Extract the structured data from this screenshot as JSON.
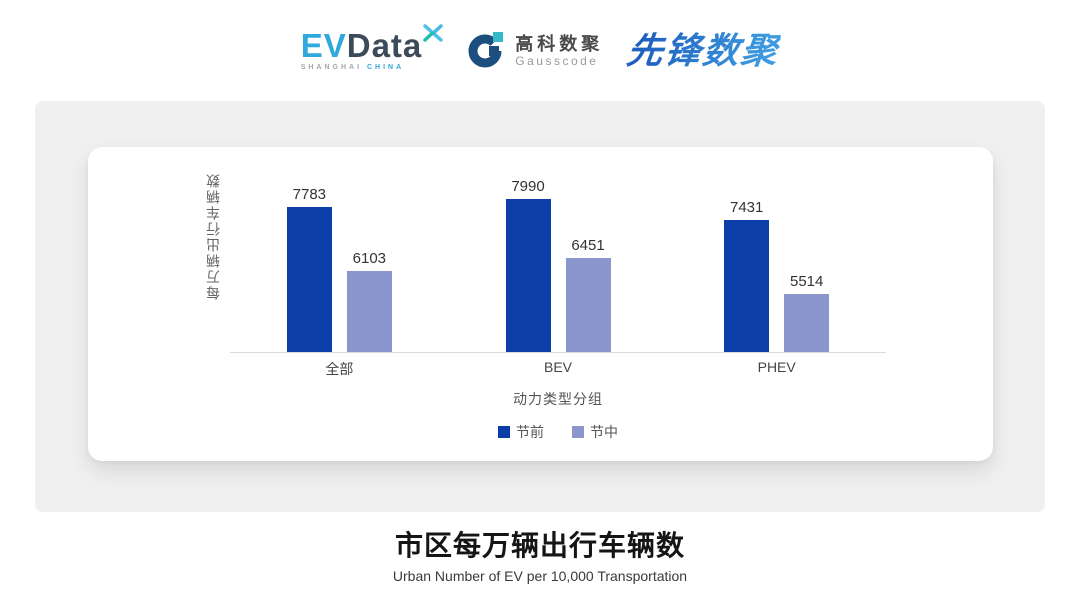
{
  "header": {
    "evdata": {
      "ev": "EV",
      "data": "Data",
      "sub_left": "SHANGHAI",
      "sub_right": "CHINA"
    },
    "gausscode": {
      "cn": "高科数聚",
      "en": "Gausscode"
    },
    "xianfeng": {
      "text": "先锋数聚"
    }
  },
  "chart_data": {
    "type": "bar",
    "categories": [
      "全部",
      "BEV",
      "PHEV"
    ],
    "series": [
      {
        "name": "节前",
        "color": "#0B3EA8",
        "values": [
          7783,
          7990,
          7431
        ]
      },
      {
        "name": "节中",
        "color": "#8B96CE",
        "values": [
          6103,
          6451,
          5514
        ]
      }
    ],
    "xlabel": "动力类型分组",
    "ylabel": "每万辆出行车辆数",
    "ylim": [
      4000,
      8400
    ],
    "value_labels": true,
    "grid": false,
    "legend_position": "bottom"
  },
  "footer": {
    "title": "市区每万辆出行车辆数",
    "subtitle": "Urban Number of EV per 10,000 Transportation"
  },
  "colors": {
    "series_pre": "#0B3EA8",
    "series_mid": "#8B96CE",
    "panel_bg": "#F0F0F1",
    "card_bg": "#FFFFFF",
    "axis_line": "#DCDCDC",
    "evdata_blue": "#2FA9DC",
    "evdata_dark": "#3D4A5A",
    "gauss_navy": "#1C4E7E",
    "gauss_teal": "#35B8C8",
    "xianfeng_blue": "#2F7CD6"
  }
}
